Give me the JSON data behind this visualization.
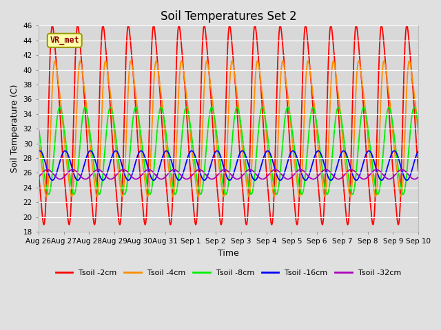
{
  "title": "Soil Temperatures Set 2",
  "xlabel": "Time",
  "ylabel": "Soil Temperature (C)",
  "ylim": [
    18,
    46
  ],
  "yticks": [
    18,
    20,
    22,
    24,
    26,
    28,
    30,
    32,
    34,
    36,
    38,
    40,
    42,
    44,
    46
  ],
  "x_labels": [
    "Aug 26",
    "Aug 27",
    "Aug 28",
    "Aug 29",
    "Aug 30",
    "Aug 31",
    "Sep 1",
    "Sep 2",
    "Sep 3",
    "Sep 4",
    "Sep 5",
    "Sep 6",
    "Sep 7",
    "Sep 8",
    "Sep 9",
    "Sep 10"
  ],
  "x_ticks_days": [
    0,
    1,
    2,
    3,
    4,
    5,
    6,
    7,
    8,
    9,
    10,
    11,
    12,
    13,
    14,
    15
  ],
  "annotation_text": "VR_met",
  "colors": {
    "Tsoil -2cm": "#FF0000",
    "Tsoil -4cm": "#FF8C00",
    "Tsoil -8cm": "#00EE00",
    "Tsoil -16cm": "#0000FF",
    "Tsoil -32cm": "#AA00BB"
  },
  "background_color": "#E0E0E0",
  "plot_bg_color": "#D8D8D8",
  "grid_color": "#FFFFFF",
  "n_points": 3000,
  "days": 15
}
